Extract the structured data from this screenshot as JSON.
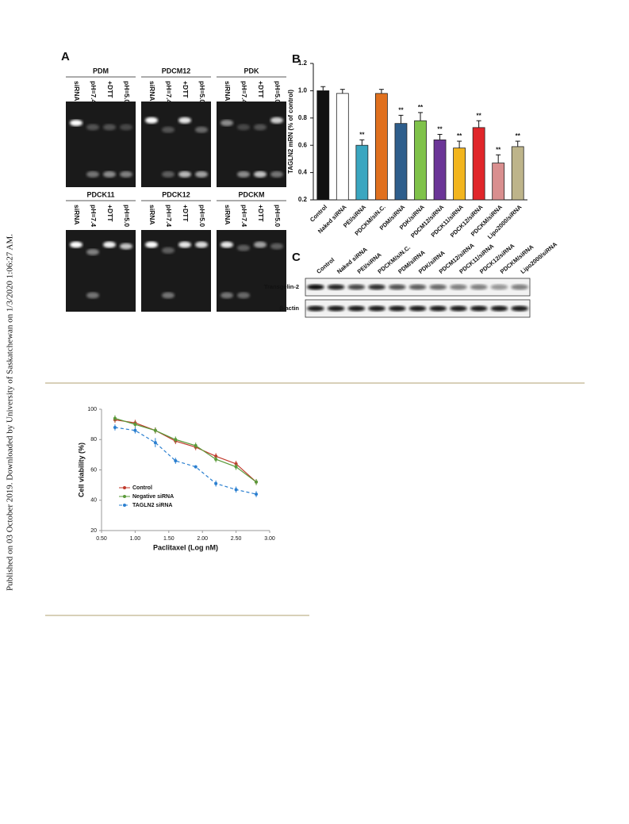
{
  "sidebar": "Published on 03 October 2019. Downloaded by University of Saskatchewan on 1/3/2020 1:06:27 AM.",
  "figure_a": {
    "label": "A",
    "gels": [
      {
        "title": "PDM",
        "lanes": [
          "siRNA",
          "pH=7.4",
          "+DTT",
          "pH=5.0"
        ]
      },
      {
        "title": "PDCM12",
        "lanes": [
          "siRNA",
          "pH=7.4",
          "+DTT",
          "pH=5.0"
        ]
      },
      {
        "title": "PDK",
        "lanes": [
          "siRNA",
          "pH=7.4",
          "+DTT",
          "pH=5.0"
        ]
      },
      {
        "title": "PDCK11",
        "lanes": [
          "siRNA",
          "pH=7.4",
          "+DTT",
          "pH=5.0"
        ]
      },
      {
        "title": "PDCK12",
        "lanes": [
          "siRNA",
          "pH=7.4",
          "+DTT",
          "pH=5.0"
        ]
      },
      {
        "title": "PDCKM",
        "lanes": [
          "siRNA",
          "pH=7.4",
          "+DTT",
          "pH=5.0"
        ]
      }
    ]
  },
  "figure_c": {
    "label": "C",
    "lanes": [
      "Control",
      "Naked siRNA",
      "PEI/siRNA",
      "PDCKM/siN.C.",
      "PDM/siRNA",
      "PDK/siRNA",
      "PDCM12/siRNA",
      "PDCK11/siRNA",
      "PDCK12/siRNA",
      "PDCKM/siRNA",
      "Lipo2000/siRNA"
    ],
    "rows": [
      "Transgelin-2",
      "β-actin"
    ]
  },
  "chart_data": [
    {
      "type": "bar",
      "panel_label": "B",
      "ylabel": "TAGLN2 mRN (% of control)",
      "categories": [
        "Control",
        "Naked siRNA",
        "PEI/siRNA",
        "PDCKM/siN.C.",
        "PDM/siRNA",
        "PDK/siRNA",
        "PDCM12/siRNA",
        "PDCK11/siRNA",
        "PDCK12/siRNA",
        "PDCKM/siRNA",
        "Lipo2000/siRNA"
      ],
      "values": [
        1.0,
        0.98,
        0.6,
        0.98,
        0.76,
        0.78,
        0.64,
        0.58,
        0.73,
        0.47,
        0.59
      ],
      "errors": [
        0.03,
        0.03,
        0.04,
        0.03,
        0.06,
        0.06,
        0.04,
        0.05,
        0.05,
        0.06,
        0.04
      ],
      "significance": [
        null,
        null,
        "**",
        null,
        "**",
        "**",
        "**",
        "**",
        "**",
        "**",
        "**"
      ],
      "colors": [
        "#111111",
        "#ffffff",
        "#3aa6c0",
        "#e0701e",
        "#2e5e8c",
        "#7fc24a",
        "#6b3597",
        "#f2b51e",
        "#e0262a",
        "#d98f8f",
        "#bdb48a"
      ],
      "ylim": [
        0.2,
        1.2
      ],
      "yticks": [
        0.2,
        0.4,
        0.6,
        0.8,
        {
          "value": 1,
          "label": "1.0"
        },
        1.2
      ]
    },
    {
      "type": "line",
      "xlabel": "Paclitaxel (Log nM)",
      "ylabel": "Cell viability (%)",
      "x": [
        0.7,
        1.0,
        1.3,
        1.6,
        1.9,
        2.2,
        2.5,
        2.8
      ],
      "series": [
        {
          "name": "Control",
          "color": "#c0392b",
          "style": "solid",
          "values": [
            93,
            91,
            86,
            79,
            75,
            69,
            64,
            52
          ],
          "errors": [
            2,
            2,
            2,
            2,
            2,
            2,
            2,
            2
          ]
        },
        {
          "name": "Negative siRNA",
          "color": "#5a9a3a",
          "style": "solid",
          "values": [
            94,
            90,
            86,
            80,
            76,
            67,
            62,
            52
          ],
          "errors": [
            2,
            2,
            2,
            2,
            2,
            2,
            2,
            2
          ]
        },
        {
          "name": "TAGLN2 siRNA",
          "color": "#2a7fd0",
          "style": "dashed",
          "values": [
            88,
            86,
            78,
            66,
            62,
            51,
            47,
            44
          ],
          "errors": [
            2,
            2,
            3,
            2,
            1,
            2,
            2,
            2
          ]
        }
      ],
      "xlim": [
        0.5,
        3.0
      ],
      "xticks": [
        {
          "value": 0.5,
          "label": "0.50"
        },
        {
          "value": 1,
          "label": "1.00"
        },
        {
          "value": 1.5,
          "label": "1.50"
        },
        {
          "value": 2,
          "label": "2.00"
        },
        {
          "value": 2.5,
          "label": "2.50"
        },
        {
          "value": 3,
          "label": "3.00"
        }
      ],
      "ylim": [
        20,
        100
      ],
      "yticks": [
        20,
        40,
        60,
        80,
        100
      ]
    }
  ]
}
